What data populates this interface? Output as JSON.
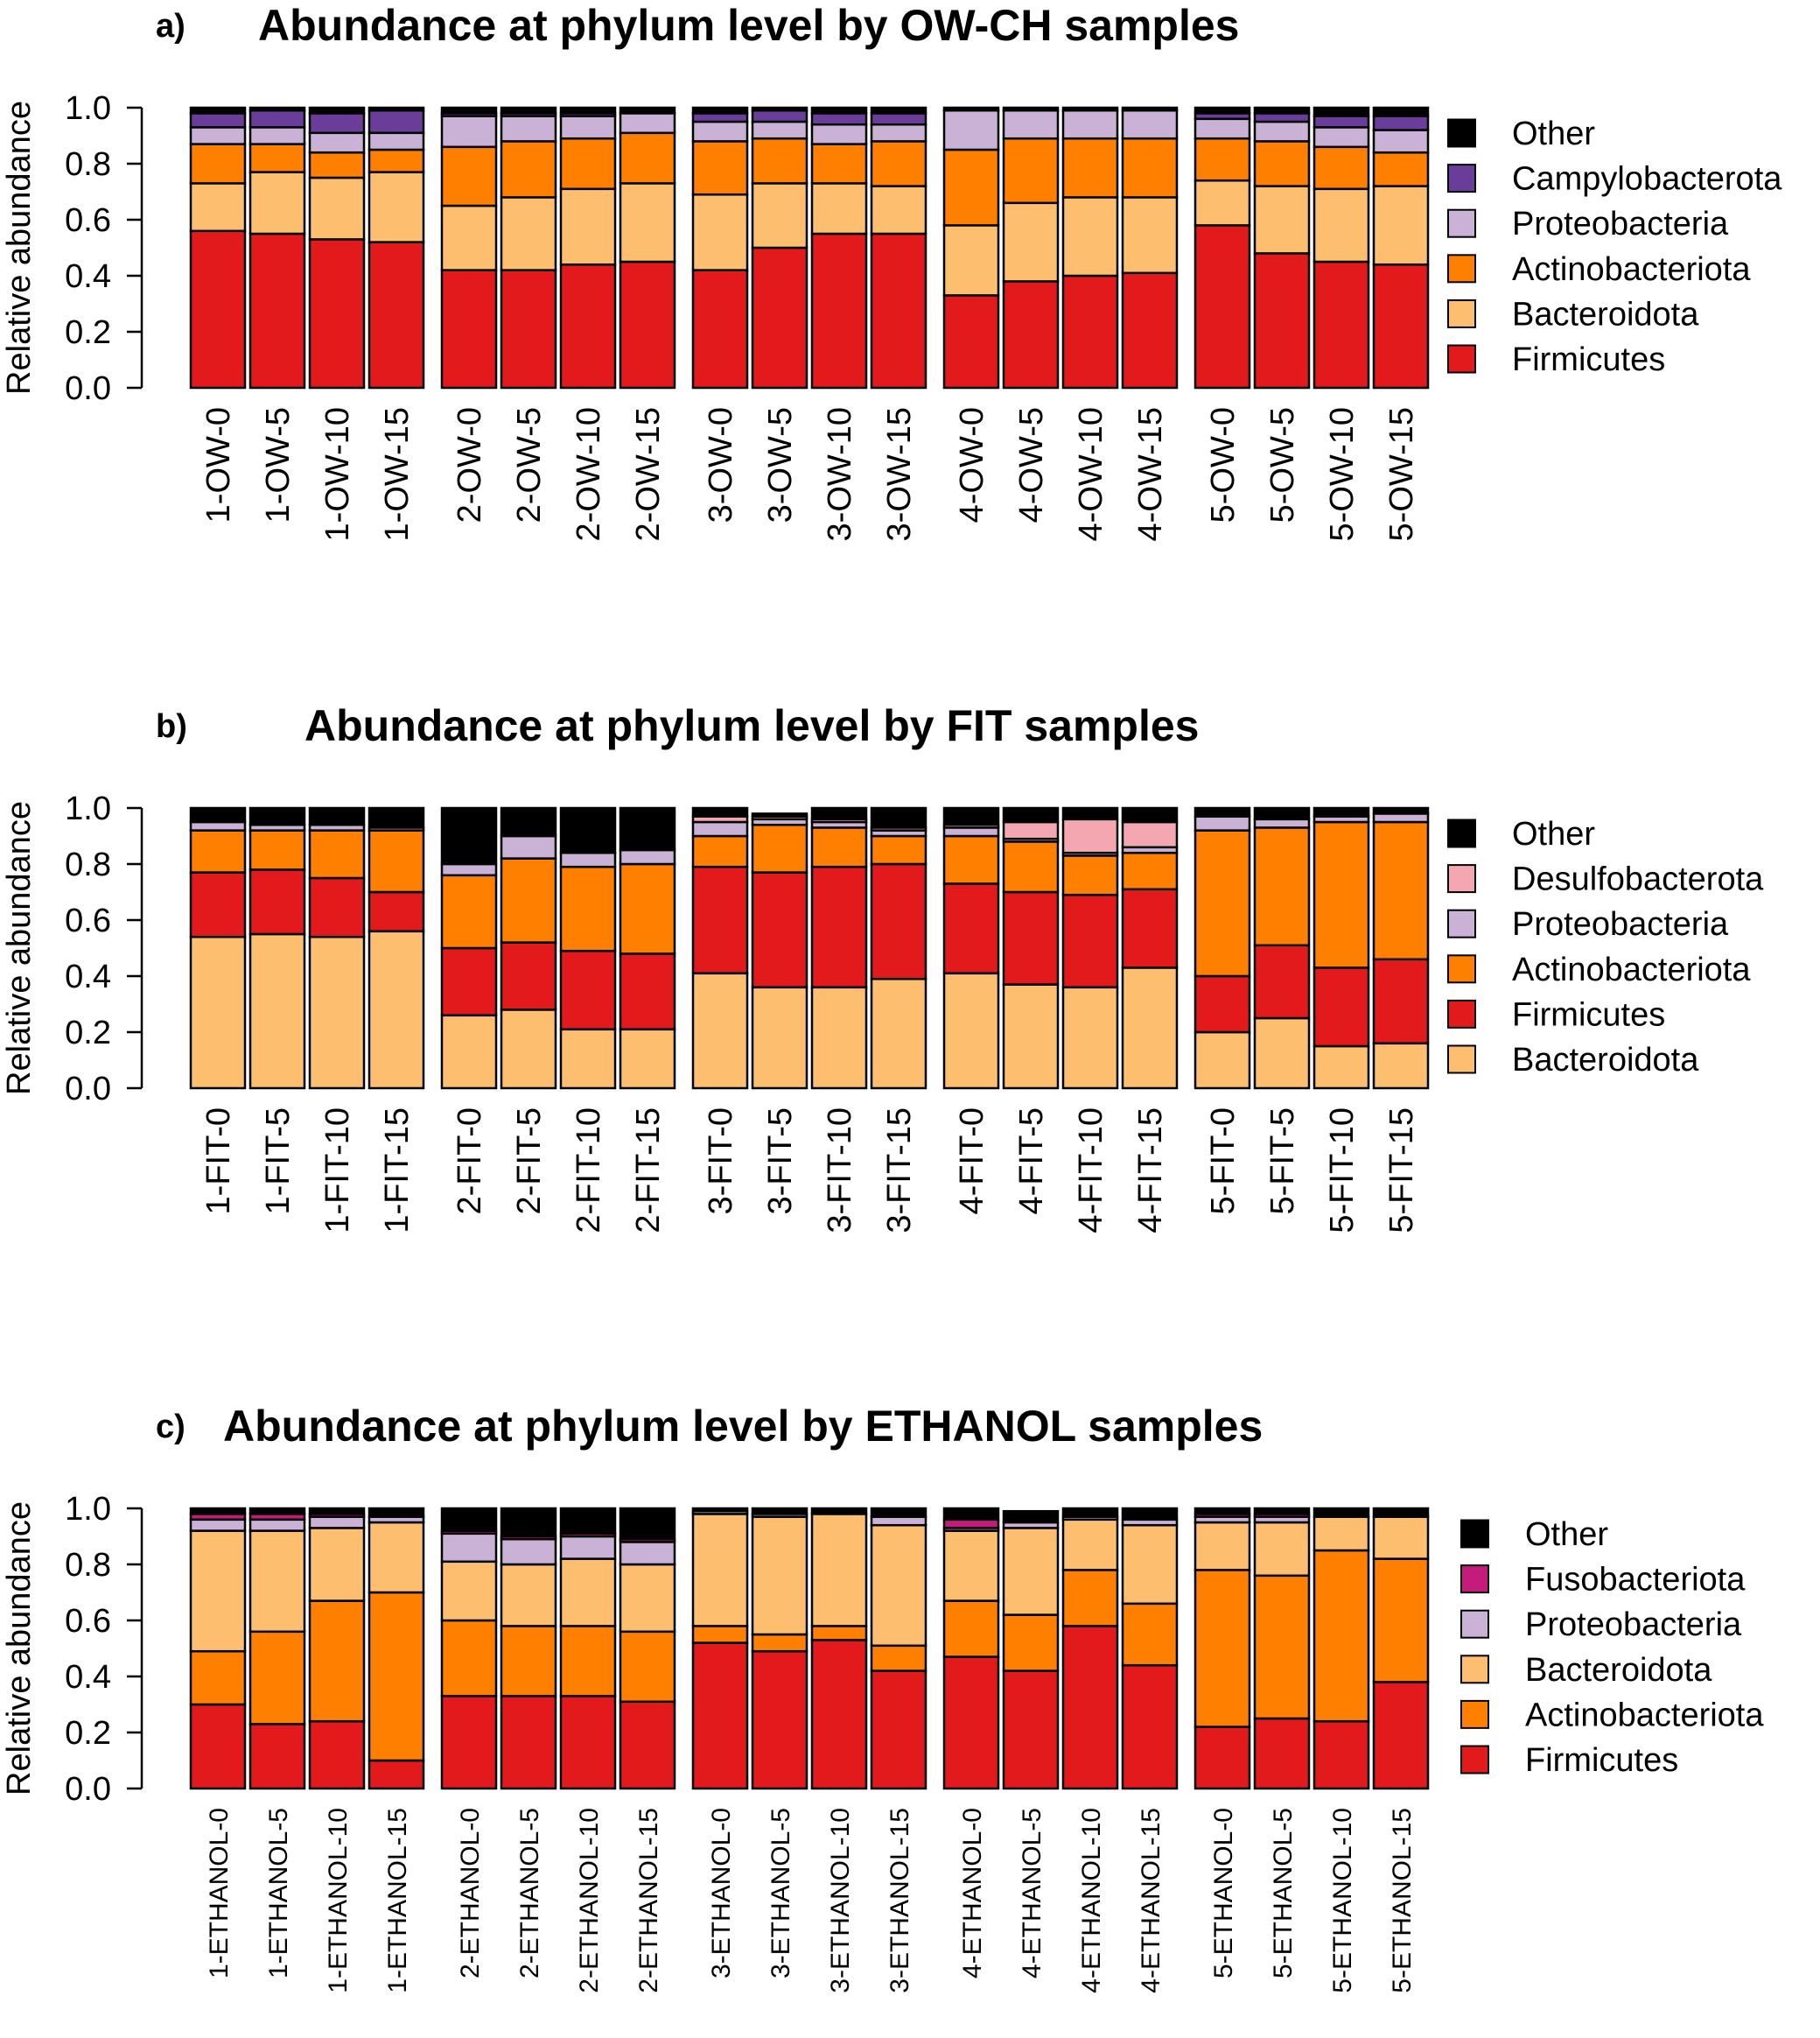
{
  "colors": {
    "Other": "#000000",
    "Campylobacterota": "#6a3d9a",
    "Proteobacteria": "#cab2d6",
    "Actinobacteriota": "#ff7f00",
    "Bacteroidota": "#fdbf6f",
    "Firmicutes": "#e31a1c",
    "Desulfobacterota": "#f4a7b0",
    "Fusobacteriota": "#c51b7d"
  },
  "chart_data": [
    {
      "type": "bar",
      "stacked": true,
      "panel_letter": "a)",
      "title": "Abundance at phylum level by OW-CH samples",
      "xlabel": "",
      "ylabel": "Relative abundance",
      "ylim": [
        0,
        1
      ],
      "yticks": [
        "0.0",
        "0.2",
        "0.4",
        "0.6",
        "0.8",
        "1.0"
      ],
      "legend_position": "right",
      "legend": [
        "Other",
        "Campylobacterota",
        "Proteobacteria",
        "Actinobacteriota",
        "Bacteroidota",
        "Firmicutes"
      ],
      "categories": [
        "1-OW-0",
        "1-OW-5",
        "1-OW-10",
        "1-OW-15",
        "2-OW-0",
        "2-OW-5",
        "2-OW-10",
        "2-OW-15",
        "3-OW-0",
        "3-OW-5",
        "3-OW-10",
        "3-OW-15",
        "4-OW-0",
        "4-OW-5",
        "4-OW-10",
        "4-OW-15",
        "5-OW-0",
        "5-OW-5",
        "5-OW-10",
        "5-OW-15"
      ],
      "series": [
        {
          "name": "Firmicutes",
          "values": [
            0.56,
            0.55,
            0.53,
            0.52,
            0.42,
            0.42,
            0.44,
            0.45,
            0.42,
            0.5,
            0.55,
            0.55,
            0.33,
            0.38,
            0.4,
            0.41,
            0.58,
            0.48,
            0.45,
            0.44
          ]
        },
        {
          "name": "Bacteroidota",
          "values": [
            0.17,
            0.22,
            0.22,
            0.25,
            0.23,
            0.26,
            0.27,
            0.28,
            0.27,
            0.23,
            0.18,
            0.17,
            0.25,
            0.28,
            0.28,
            0.27,
            0.16,
            0.24,
            0.26,
            0.28
          ]
        },
        {
          "name": "Actinobacteriota",
          "values": [
            0.14,
            0.1,
            0.09,
            0.08,
            0.21,
            0.2,
            0.18,
            0.18,
            0.19,
            0.16,
            0.14,
            0.16,
            0.27,
            0.23,
            0.21,
            0.21,
            0.15,
            0.16,
            0.15,
            0.12
          ]
        },
        {
          "name": "Proteobacteria",
          "values": [
            0.06,
            0.06,
            0.07,
            0.06,
            0.11,
            0.09,
            0.08,
            0.07,
            0.07,
            0.06,
            0.07,
            0.06,
            0.14,
            0.1,
            0.1,
            0.1,
            0.07,
            0.07,
            0.07,
            0.08
          ]
        },
        {
          "name": "Campylobacterota",
          "values": [
            0.05,
            0.06,
            0.07,
            0.08,
            0.01,
            0.01,
            0.01,
            0.0,
            0.03,
            0.04,
            0.04,
            0.04,
            0.0,
            0.0,
            0.0,
            0.0,
            0.02,
            0.03,
            0.04,
            0.05
          ]
        },
        {
          "name": "Other",
          "values": [
            0.02,
            0.01,
            0.02,
            0.01,
            0.02,
            0.02,
            0.02,
            0.02,
            0.02,
            0.01,
            0.02,
            0.02,
            0.01,
            0.01,
            0.01,
            0.01,
            0.02,
            0.02,
            0.03,
            0.03
          ]
        }
      ]
    },
    {
      "type": "bar",
      "stacked": true,
      "panel_letter": "b)",
      "title": "Abundance at phylum level by FIT samples",
      "xlabel": "",
      "ylabel": "Relative abundance",
      "ylim": [
        0,
        1
      ],
      "yticks": [
        "0.0",
        "0.2",
        "0.4",
        "0.6",
        "0.8",
        "1.0"
      ],
      "legend_position": "right",
      "legend": [
        "Other",
        "Desulfobacterota",
        "Proteobacteria",
        "Actinobacteriota",
        "Firmicutes",
        "Bacteroidota"
      ],
      "categories": [
        "1-FIT-0",
        "1-FIT-5",
        "1-FIT-10",
        "1-FIT-15",
        "2-FIT-0",
        "2-FIT-5",
        "2-FIT-10",
        "2-FIT-15",
        "3-FIT-0",
        "3-FIT-5",
        "3-FIT-10",
        "3-FIT-15",
        "4-FIT-0",
        "4-FIT-5",
        "4-FIT-10",
        "4-FIT-15",
        "5-FIT-0",
        "5-FIT-5",
        "5-FIT-10",
        "5-FIT-15"
      ],
      "series": [
        {
          "name": "Bacteroidota",
          "values": [
            0.54,
            0.55,
            0.54,
            0.56,
            0.26,
            0.28,
            0.21,
            0.21,
            0.41,
            0.36,
            0.36,
            0.39,
            0.41,
            0.37,
            0.36,
            0.43,
            0.2,
            0.25,
            0.15,
            0.16
          ]
        },
        {
          "name": "Firmicutes",
          "values": [
            0.23,
            0.23,
            0.21,
            0.14,
            0.24,
            0.24,
            0.28,
            0.27,
            0.38,
            0.41,
            0.43,
            0.41,
            0.32,
            0.33,
            0.33,
            0.28,
            0.2,
            0.26,
            0.28,
            0.3
          ]
        },
        {
          "name": "Actinobacteriota",
          "values": [
            0.15,
            0.14,
            0.17,
            0.22,
            0.26,
            0.3,
            0.3,
            0.32,
            0.11,
            0.17,
            0.14,
            0.1,
            0.17,
            0.18,
            0.14,
            0.13,
            0.52,
            0.42,
            0.52,
            0.49
          ]
        },
        {
          "name": "Proteobacteria",
          "values": [
            0.03,
            0.02,
            0.02,
            0.01,
            0.04,
            0.08,
            0.05,
            0.05,
            0.05,
            0.02,
            0.02,
            0.02,
            0.03,
            0.01,
            0.01,
            0.02,
            0.05,
            0.03,
            0.02,
            0.03
          ]
        },
        {
          "name": "Desulfobacterota",
          "values": [
            0.0,
            0.0,
            0.0,
            0.0,
            0.0,
            0.0,
            0.0,
            0.0,
            0.02,
            0.01,
            0.01,
            0.01,
            0.01,
            0.06,
            0.12,
            0.09,
            0.0,
            0.0,
            0.0,
            0.0
          ]
        },
        {
          "name": "Other",
          "values": [
            0.05,
            0.06,
            0.06,
            0.07,
            0.2,
            0.1,
            0.16,
            0.15,
            0.03,
            0.01,
            0.04,
            0.07,
            0.06,
            0.05,
            0.04,
            0.05,
            0.03,
            0.04,
            0.03,
            0.02
          ]
        }
      ]
    },
    {
      "type": "bar",
      "stacked": true,
      "panel_letter": "c)",
      "title": "Abundance at phylum level by ETHANOL samples",
      "xlabel": "",
      "ylabel": "Relative abundance",
      "ylim": [
        0,
        1
      ],
      "yticks": [
        "0.0",
        "0.2",
        "0.4",
        "0.6",
        "0.8",
        "1.0"
      ],
      "legend_position": "right",
      "legend": [
        "Other",
        "Fusobacteriota",
        "Proteobacteria",
        "Bacteroidota",
        "Actinobacteriota",
        "Firmicutes"
      ],
      "categories": [
        "1-ETHANOL-0",
        "1-ETHANOL-5",
        "1-ETHANOL-10",
        "1-ETHANOL-15",
        "2-ETHANOL-0",
        "2-ETHANOL-5",
        "2-ETHANOL-10",
        "2-ETHANOL-15",
        "3-ETHANOL-0",
        "3-ETHANOL-5",
        "3-ETHANOL-10",
        "3-ETHANOL-15",
        "4-ETHANOL-0",
        "4-ETHANOL-5",
        "4-ETHANOL-10",
        "4-ETHANOL-15",
        "5-ETHANOL-0",
        "5-ETHANOL-5",
        "5-ETHANOL-10",
        "5-ETHANOL-15"
      ],
      "series": [
        {
          "name": "Firmicutes",
          "values": [
            0.3,
            0.23,
            0.24,
            0.1,
            0.33,
            0.33,
            0.33,
            0.31,
            0.52,
            0.49,
            0.53,
            0.42,
            0.47,
            0.42,
            0.58,
            0.44,
            0.22,
            0.25,
            0.24,
            0.38
          ]
        },
        {
          "name": "Actinobacteriota",
          "values": [
            0.19,
            0.33,
            0.43,
            0.6,
            0.27,
            0.25,
            0.25,
            0.25,
            0.06,
            0.06,
            0.05,
            0.09,
            0.2,
            0.2,
            0.2,
            0.22,
            0.56,
            0.51,
            0.61,
            0.44
          ]
        },
        {
          "name": "Bacteroidota",
          "values": [
            0.43,
            0.36,
            0.26,
            0.25,
            0.21,
            0.22,
            0.24,
            0.24,
            0.4,
            0.42,
            0.4,
            0.43,
            0.25,
            0.31,
            0.18,
            0.28,
            0.17,
            0.19,
            0.12,
            0.15
          ]
        },
        {
          "name": "Proteobacteria",
          "values": [
            0.04,
            0.04,
            0.04,
            0.02,
            0.1,
            0.09,
            0.08,
            0.08,
            0.01,
            0.01,
            0.0,
            0.03,
            0.01,
            0.02,
            0.01,
            0.02,
            0.02,
            0.02,
            0.0,
            0.0
          ]
        },
        {
          "name": "Fusobacteriota",
          "values": [
            0.02,
            0.02,
            0.01,
            0.0,
            0.01,
            0.01,
            0.01,
            0.01,
            0.0,
            0.0,
            0.0,
            0.0,
            0.03,
            0.0,
            0.0,
            0.0,
            0.01,
            0.01,
            0.0,
            0.0
          ]
        },
        {
          "name": "Other",
          "values": [
            0.02,
            0.02,
            0.02,
            0.03,
            0.08,
            0.1,
            0.09,
            0.11,
            0.01,
            0.02,
            0.02,
            0.03,
            0.04,
            0.04,
            0.03,
            0.04,
            0.02,
            0.02,
            0.03,
            0.03
          ]
        }
      ]
    }
  ]
}
